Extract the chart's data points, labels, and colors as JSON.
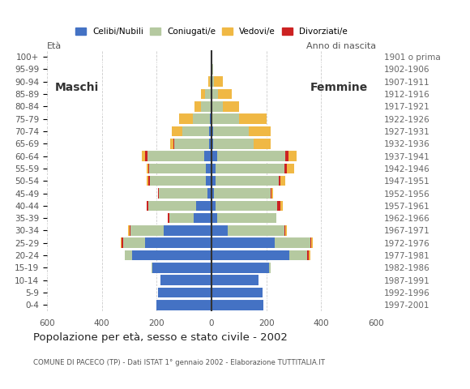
{
  "age_groups": [
    "0-4",
    "5-9",
    "10-14",
    "15-19",
    "20-24",
    "25-29",
    "30-34",
    "35-39",
    "40-44",
    "45-49",
    "50-54",
    "55-59",
    "60-64",
    "65-69",
    "70-74",
    "75-79",
    "80-84",
    "85-89",
    "90-94",
    "95-99",
    "100+"
  ],
  "birth_years": [
    "1997-2001",
    "1992-1996",
    "1987-1991",
    "1982-1986",
    "1977-1981",
    "1972-1976",
    "1967-1971",
    "1962-1966",
    "1957-1961",
    "1952-1956",
    "1947-1951",
    "1942-1946",
    "1937-1941",
    "1932-1936",
    "1927-1931",
    "1922-1926",
    "1917-1921",
    "1912-1916",
    "1907-1911",
    "1902-1906",
    "1901 o prima"
  ],
  "males_celibe": [
    200,
    196,
    185,
    215,
    290,
    242,
    175,
    65,
    55,
    16,
    20,
    22,
    28,
    10,
    10,
    5,
    4,
    2,
    2,
    0,
    0
  ],
  "males_coniugato": [
    0,
    0,
    0,
    5,
    25,
    80,
    120,
    90,
    175,
    175,
    205,
    205,
    205,
    125,
    95,
    62,
    35,
    22,
    5,
    0,
    0
  ],
  "males_vedovo": [
    0,
    0,
    0,
    0,
    0,
    5,
    5,
    0,
    0,
    0,
    5,
    5,
    10,
    10,
    40,
    50,
    22,
    15,
    5,
    0,
    0
  ],
  "males_divorziato": [
    0,
    0,
    0,
    0,
    0,
    5,
    5,
    5,
    5,
    5,
    5,
    5,
    10,
    5,
    0,
    0,
    0,
    0,
    0,
    0,
    0
  ],
  "females_nubile": [
    190,
    185,
    170,
    210,
    285,
    230,
    60,
    20,
    15,
    10,
    15,
    15,
    20,
    5,
    5,
    0,
    0,
    0,
    0,
    0,
    0
  ],
  "females_coniugata": [
    0,
    0,
    0,
    5,
    65,
    130,
    205,
    215,
    225,
    205,
    230,
    250,
    250,
    150,
    130,
    100,
    40,
    25,
    10,
    5,
    0
  ],
  "females_vedova": [
    0,
    0,
    0,
    0,
    5,
    5,
    5,
    0,
    10,
    5,
    20,
    25,
    30,
    60,
    80,
    100,
    60,
    50,
    30,
    0,
    0
  ],
  "females_divorziata": [
    0,
    0,
    0,
    0,
    5,
    5,
    5,
    0,
    10,
    5,
    5,
    10,
    10,
    0,
    0,
    0,
    0,
    0,
    0,
    0,
    0
  ],
  "colors_celibe": "#4472c4",
  "colors_coniugato": "#b5c9a0",
  "colors_vedovo": "#f0b844",
  "colors_divorziato": "#cc2222",
  "legend_labels": [
    "Celibi/Nubili",
    "Coniugati/e",
    "Vedovi/e",
    "Divorziati/e"
  ],
  "xlim": 600,
  "title": "Popolazione per età, sesso e stato civile - 2002",
  "subtitle": "COMUNE DI PACECO (TP) - Dati ISTAT 1° gennaio 2002 - Elaborazione TUTTITALIA.IT",
  "label_maschi": "Maschi",
  "label_femmine": "Femmine",
  "label_eta": "Età",
  "label_anno": "Anno di nascita",
  "bar_height": 0.82,
  "bg_color": "#ffffff"
}
